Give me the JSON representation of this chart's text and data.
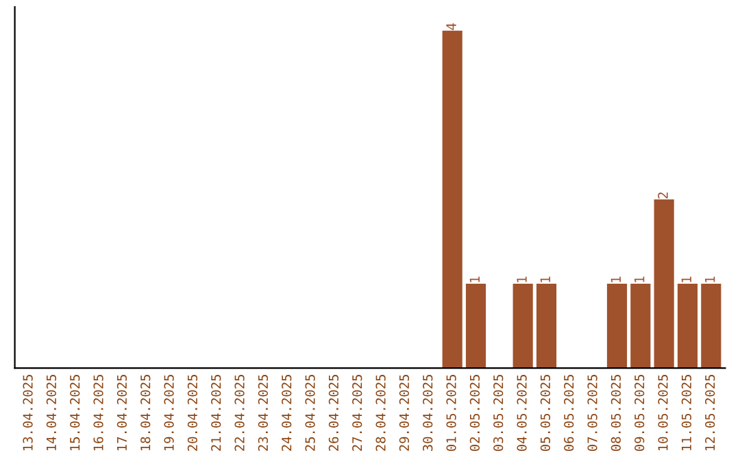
{
  "chart_data": {
    "type": "bar",
    "categories": [
      "13.04.2025",
      "14.04.2025",
      "15.04.2025",
      "16.04.2025",
      "17.04.2025",
      "18.04.2025",
      "19.04.2025",
      "20.04.2025",
      "21.04.2025",
      "22.04.2025",
      "23.04.2025",
      "24.04.2025",
      "25.04.2025",
      "26.04.2025",
      "27.04.2025",
      "28.04.2025",
      "29.04.2025",
      "30.04.2025",
      "01.05.2025",
      "02.05.2025",
      "03.05.2025",
      "04.05.2025",
      "05.05.2025",
      "06.05.2025",
      "07.05.2025",
      "08.05.2025",
      "09.05.2025",
      "10.05.2025",
      "11.05.2025",
      "12.05.2025"
    ],
    "values": [
      null,
      null,
      null,
      null,
      null,
      null,
      null,
      null,
      null,
      null,
      null,
      null,
      null,
      null,
      null,
      null,
      null,
      null,
      4,
      1,
      null,
      1,
      1,
      null,
      null,
      1,
      1,
      2,
      1,
      1
    ],
    "value_labels": [
      null,
      null,
      null,
      null,
      null,
      null,
      null,
      null,
      null,
      null,
      null,
      null,
      null,
      null,
      null,
      null,
      null,
      null,
      "4",
      "1",
      null,
      "1",
      "1",
      null,
      null,
      "1",
      "1",
      "2",
      "1",
      "1"
    ],
    "color": "#a0522d",
    "tick_labels": "x",
    "grid": false,
    "legend": false
  }
}
